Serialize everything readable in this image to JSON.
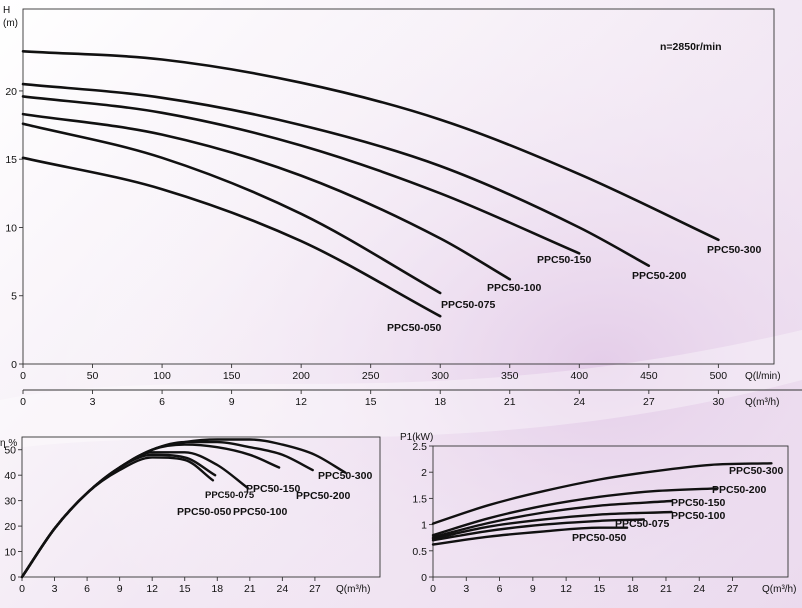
{
  "background_colors": [
    "#ffffff",
    "#efe2f1",
    "#e6d2ea"
  ],
  "curve_color": "#111111",
  "chart_data": [
    {
      "type": "line",
      "name": "head",
      "ylabel": "H",
      "yunit": "(m)",
      "xlabel": "Q(l/min)",
      "xlabel2": "Q(m³/h)",
      "annotation": "n=2850r/min",
      "xlim": [
        0,
        540
      ],
      "ylim": [
        0,
        26
      ],
      "yticks": [
        0,
        5,
        10,
        15,
        20
      ],
      "xticks": [
        0,
        50,
        100,
        150,
        200,
        250,
        300,
        350,
        400,
        450,
        500
      ],
      "xticks2": [
        0,
        3,
        6,
        9,
        12,
        15,
        18,
        21,
        24,
        27,
        30
      ],
      "series": [
        {
          "name": "PPC50-050",
          "x": [
            0,
            100,
            200,
            300
          ],
          "y": [
            15.1,
            12.8,
            9.0,
            3.5
          ]
        },
        {
          "name": "PPC50-075",
          "x": [
            0,
            100,
            200,
            300
          ],
          "y": [
            17.6,
            15.1,
            11.0,
            5.2
          ]
        },
        {
          "name": "PPC50-100",
          "x": [
            0,
            100,
            200,
            300,
            350
          ],
          "y": [
            18.3,
            16.8,
            13.8,
            9.2,
            6.2
          ]
        },
        {
          "name": "PPC50-150",
          "x": [
            0,
            100,
            200,
            300,
            400
          ],
          "y": [
            19.6,
            18.4,
            16.0,
            12.5,
            8.1
          ]
        },
        {
          "name": "PPC50-200",
          "x": [
            0,
            100,
            200,
            300,
            400,
            450
          ],
          "y": [
            20.5,
            19.5,
            17.5,
            14.5,
            10.0,
            7.2
          ]
        },
        {
          "name": "PPC50-300",
          "x": [
            0,
            100,
            200,
            300,
            400,
            500
          ],
          "y": [
            22.9,
            22.3,
            20.6,
            17.9,
            13.9,
            9.1
          ]
        }
      ]
    },
    {
      "type": "line",
      "name": "efficiency",
      "ylabel": "η %",
      "xlabel": "Q(m³/h)",
      "xlim": [
        0,
        33
      ],
      "ylim": [
        0,
        55
      ],
      "yticks": [
        0,
        10,
        20,
        30,
        40,
        50
      ],
      "xticks": [
        0,
        3,
        6,
        9,
        12,
        15,
        18,
        21,
        24,
        27
      ],
      "series": [
        {
          "name": "PPC50-050",
          "x": [
            0,
            3,
            6,
            9,
            12,
            15,
            17.6
          ],
          "y": [
            0,
            19,
            33,
            42,
            47,
            46,
            38
          ]
        },
        {
          "name": "PPC50-075",
          "x": [
            0,
            3,
            6,
            9,
            12,
            15,
            17.8
          ],
          "y": [
            0,
            19,
            33,
            43,
            48,
            47,
            40
          ]
        },
        {
          "name": "PPC50-100",
          "x": [
            0,
            3,
            6,
            9,
            12,
            15,
            18,
            20.8
          ],
          "y": [
            0,
            19,
            33,
            43,
            49,
            49,
            44,
            35
          ]
        },
        {
          "name": "PPC50-150",
          "x": [
            0,
            3,
            6,
            9,
            12,
            15,
            18,
            21,
            23.7
          ],
          "y": [
            0,
            19,
            33,
            43,
            50,
            52,
            51,
            48,
            43
          ]
        },
        {
          "name": "PPC50-200",
          "x": [
            0,
            3,
            6,
            9,
            12,
            15,
            18,
            21,
            24,
            26.8
          ],
          "y": [
            0,
            19,
            33,
            43,
            50,
            53,
            53,
            51,
            48,
            42
          ]
        },
        {
          "name": "PPC50-300",
          "x": [
            0,
            3,
            6,
            9,
            12,
            15,
            18,
            21,
            24,
            27,
            29.8
          ],
          "y": [
            0,
            19,
            33,
            43,
            50,
            53,
            54,
            54,
            52,
            48,
            41
          ]
        }
      ]
    },
    {
      "type": "line",
      "name": "power",
      "ylabel": "P1(kW)",
      "xlabel": "Q(m³/h)",
      "xlim": [
        0,
        32
      ],
      "ylim": [
        0,
        2.5
      ],
      "yticks": [
        0,
        0.5,
        1,
        1.5,
        2,
        2.5
      ],
      "xticks": [
        0,
        3,
        6,
        9,
        12,
        15,
        18,
        21,
        24,
        27
      ],
      "series": [
        {
          "name": "PPC50-050",
          "x": [
            0,
            5,
            10,
            15,
            17.5
          ],
          "y": [
            0.62,
            0.77,
            0.87,
            0.94,
            0.94
          ]
        },
        {
          "name": "PPC50-075",
          "x": [
            0,
            5,
            10,
            15,
            19
          ],
          "y": [
            0.7,
            0.88,
            1.0,
            1.07,
            1.1
          ]
        },
        {
          "name": "PPC50-100",
          "x": [
            0,
            5,
            10,
            15,
            21.5
          ],
          "y": [
            0.73,
            0.96,
            1.1,
            1.19,
            1.24
          ]
        },
        {
          "name": "PPC50-150",
          "x": [
            0,
            5,
            10,
            15,
            21.5
          ],
          "y": [
            0.76,
            1.03,
            1.23,
            1.36,
            1.45
          ]
        },
        {
          "name": "PPC50-200",
          "x": [
            0,
            5,
            10,
            15,
            20,
            25.5
          ],
          "y": [
            0.8,
            1.12,
            1.36,
            1.53,
            1.64,
            1.69
          ]
        },
        {
          "name": "PPC50-300",
          "x": [
            0,
            5,
            10,
            15,
            20,
            25,
            30.5
          ],
          "y": [
            1.02,
            1.37,
            1.64,
            1.86,
            2.02,
            2.14,
            2.17
          ]
        }
      ]
    }
  ]
}
